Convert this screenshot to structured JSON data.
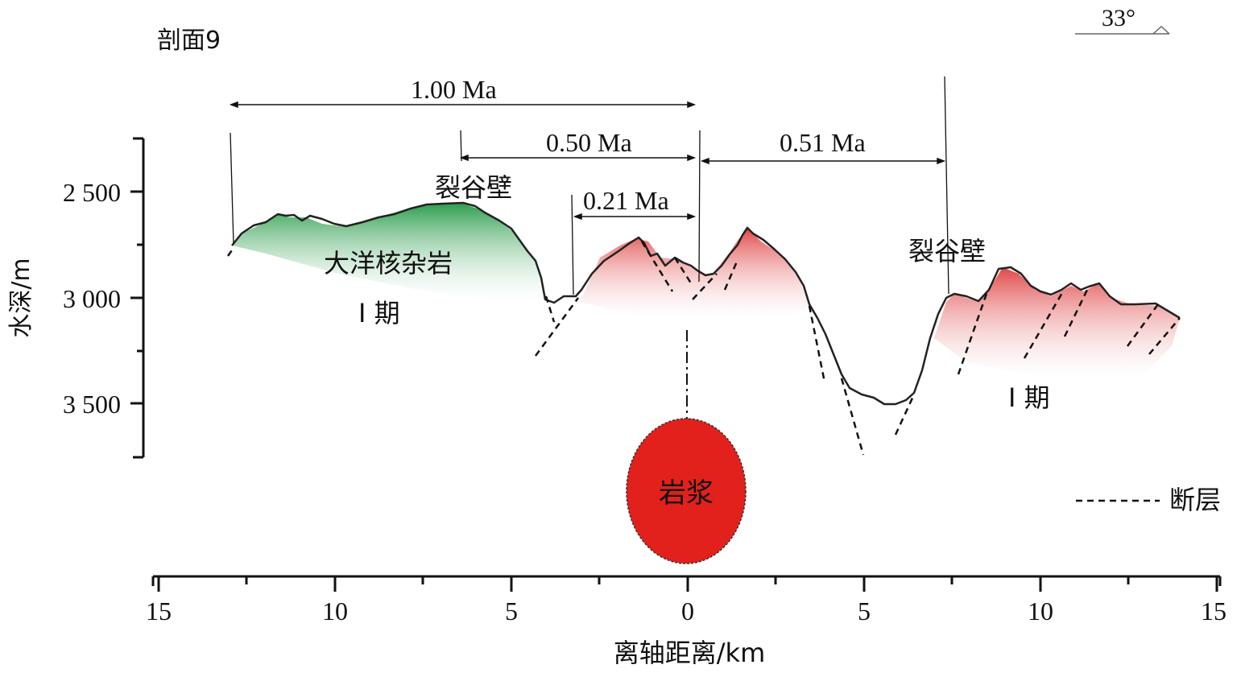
{
  "profile_title": "剖面9",
  "angle_label": "33°",
  "y_axis": {
    "label": "水深/m",
    "ticks": [
      "2 500",
      "3 000",
      "3 500"
    ]
  },
  "x_axis": {
    "label": "离轴距离/km",
    "ticks": [
      "15",
      "10",
      "5",
      "0",
      "5",
      "10",
      "15"
    ]
  },
  "ages": {
    "a100": "1.00 Ma",
    "a050": "0.50 Ma",
    "a021": "0.21 Ma",
    "a051": "0.51 Ma"
  },
  "labels": {
    "rift_wall_left": "裂谷壁",
    "rift_wall_right": "裂谷壁",
    "core_complex": "大洋核杂岩",
    "phase_left": "I 期",
    "phase_right": "I 期",
    "magma": "岩浆"
  },
  "legend": {
    "fault": "断层"
  },
  "colors": {
    "green": "#3aa55a",
    "red": "#e35a5a",
    "magma": "#e2201c"
  }
}
